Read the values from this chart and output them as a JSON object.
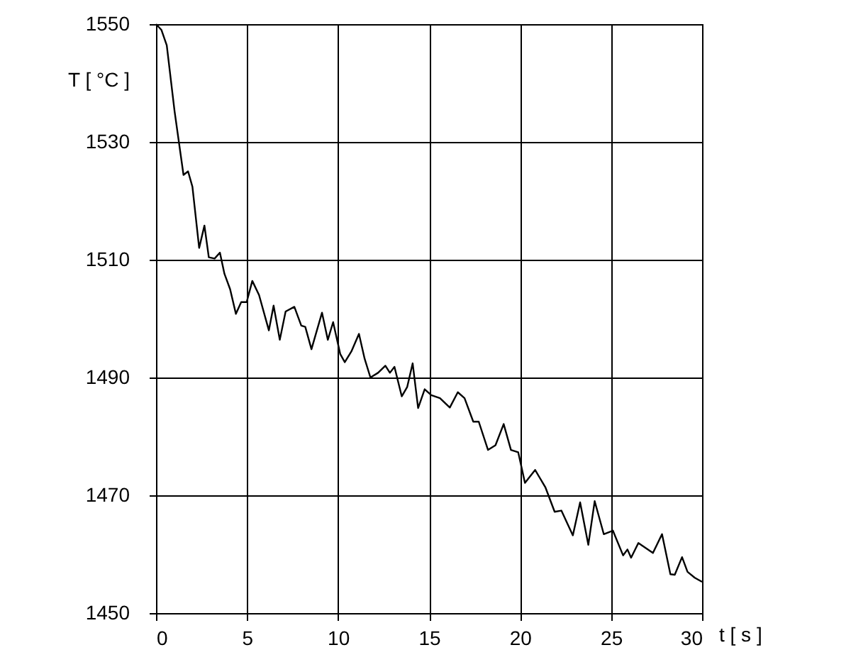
{
  "chart_data": {
    "type": "line",
    "xlabel": "t [ s ]",
    "ylabel": "T [ °C ]",
    "xlim": [
      0,
      30
    ],
    "ylim": [
      1450,
      1550
    ],
    "xticks": [
      0,
      5,
      10,
      15,
      20,
      25,
      30
    ],
    "yticks": [
      1450,
      1470,
      1490,
      1510,
      1530,
      1550
    ],
    "grid": true,
    "x": [
      0,
      0.3,
      0.59,
      1.02,
      1.51,
      1.76,
      2.0,
      2.37,
      2.66,
      2.9,
      3.22,
      3.51,
      3.76,
      4.07,
      4.39,
      4.68,
      4.98,
      5.29,
      5.66,
      6.2,
      6.46,
      6.8,
      7.12,
      7.6,
      7.98,
      8.2,
      8.54,
      9.12,
      9.44,
      9.73,
      10.12,
      10.37,
      10.73,
      11.15,
      11.46,
      11.78,
      12.2,
      12.6,
      12.85,
      13.1,
      13.5,
      13.8,
      14.1,
      14.4,
      14.76,
      15.12,
      15.6,
      16.14,
      16.58,
      16.95,
      17.43,
      17.73,
      18.24,
      18.65,
      19.1,
      19.5,
      19.9,
      20.27,
      20.83,
      21.4,
      21.9,
      22.27,
      22.9,
      23.3,
      23.75,
      24.1,
      24.6,
      25.1,
      25.66,
      25.9,
      26.1,
      26.5,
      27.3,
      27.8,
      28.26,
      28.5,
      28.9,
      29.2,
      29.6,
      30
    ],
    "series": [
      {
        "color": "#000000",
        "values": [
          1550,
          1549,
          1546.4,
          1535.2,
          1524.4,
          1525,
          1522.4,
          1512,
          1515.8,
          1510.4,
          1510.2,
          1511.2,
          1507.6,
          1505,
          1500.8,
          1502.8,
          1502.8,
          1506.4,
          1504,
          1498,
          1502.2,
          1496.4,
          1501.2,
          1502,
          1498.8,
          1498.6,
          1494.8,
          1501,
          1496.4,
          1499.4,
          1494,
          1492.6,
          1494.4,
          1497.4,
          1493.2,
          1490,
          1490.8,
          1492,
          1490.8,
          1491.8,
          1486.8,
          1488.4,
          1492.4,
          1484.8,
          1488,
          1487,
          1486.5,
          1484.9,
          1487.5,
          1486.5,
          1482.5,
          1482.5,
          1477.7,
          1478.5,
          1482.1,
          1477.7,
          1477.3,
          1472.1,
          1474.3,
          1471.3,
          1467.2,
          1467.4,
          1463.2,
          1468.8,
          1461.6,
          1469,
          1463.4,
          1464,
          1459.8,
          1460.8,
          1459.4,
          1461.9,
          1460.2,
          1463.4,
          1456.6,
          1456.5,
          1459.5,
          1457,
          1456,
          1455.3
        ]
      }
    ]
  }
}
